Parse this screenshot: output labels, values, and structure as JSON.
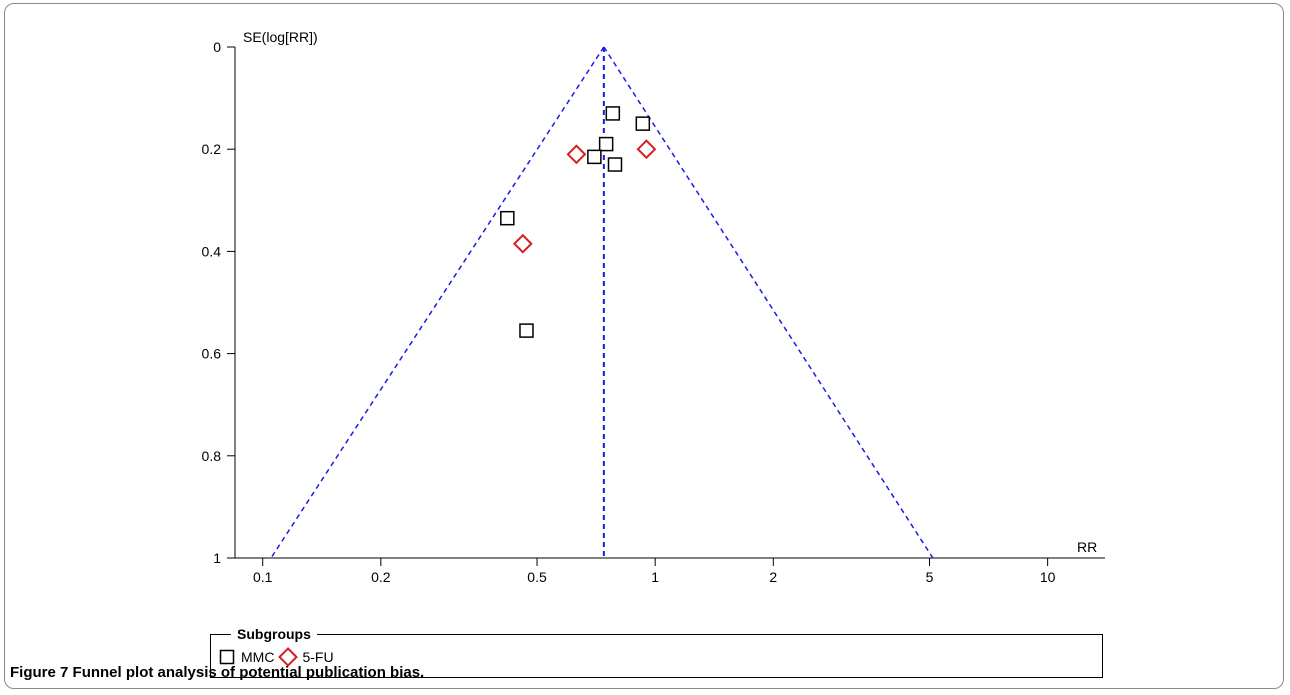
{
  "chart_data": {
    "type": "scatter",
    "title": "",
    "xlabel": "RR",
    "ylabel": "SE(log[RR])",
    "x_scale": "log",
    "x_ticks": [
      0.1,
      0.2,
      0.5,
      1,
      2,
      5,
      10
    ],
    "x_tick_labels": [
      "0.1",
      "0.2",
      "0.5",
      "1",
      "2",
      "5",
      "10"
    ],
    "y_ticks": [
      0,
      0.2,
      0.4,
      0.6,
      0.8,
      1
    ],
    "y_tick_labels": [
      "0",
      "0.2",
      "0.4",
      "0.6",
      "0.8",
      "1"
    ],
    "y_inverted": true,
    "xlim": [
      0.085,
      14
    ],
    "ylim": [
      0,
      1
    ],
    "pooled_estimate": 0.74,
    "funnel": {
      "apex_se": 0,
      "base_se": 1,
      "base_x": [
        0.105,
        5.1
      ]
    },
    "series": [
      {
        "name": "MMC",
        "marker": "square",
        "color": "#000000",
        "points": [
          {
            "x": 0.78,
            "y": 0.13
          },
          {
            "x": 0.93,
            "y": 0.15
          },
          {
            "x": 0.75,
            "y": 0.19
          },
          {
            "x": 0.7,
            "y": 0.215
          },
          {
            "x": 0.79,
            "y": 0.23
          },
          {
            "x": 0.42,
            "y": 0.335
          },
          {
            "x": 0.47,
            "y": 0.555
          }
        ]
      },
      {
        "name": "5-FU",
        "marker": "diamond",
        "color": "#d62020",
        "points": [
          {
            "x": 0.63,
            "y": 0.21
          },
          {
            "x": 0.95,
            "y": 0.2
          },
          {
            "x": 0.46,
            "y": 0.385
          }
        ]
      }
    ],
    "legend": {
      "title": "Subgroups",
      "position": "bottom"
    }
  },
  "caption": {
    "number": "Figure 7",
    "text": "Funnel plot analysis of potential publication bias."
  },
  "colors": {
    "funnel_line": "#1a1ae6",
    "axis": "#000000",
    "frame": "#8a8a8a"
  }
}
